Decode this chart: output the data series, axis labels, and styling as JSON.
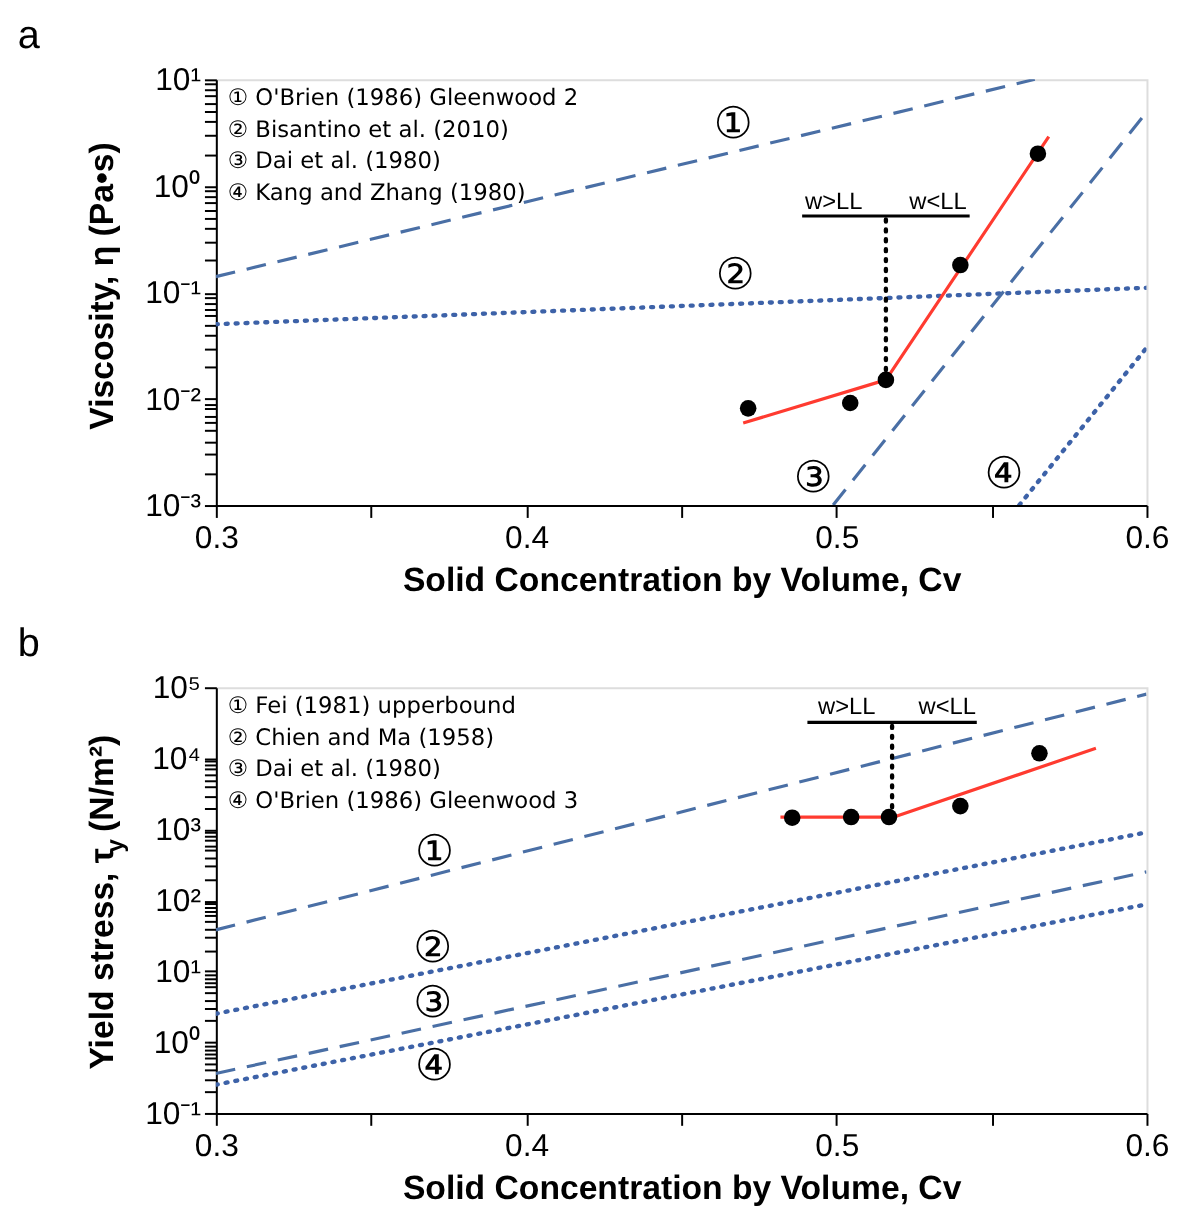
{
  "chart_data": [
    {
      "type": "line",
      "title": "a",
      "xlabel": "Solid Concentration by Volume, Cv",
      "ylabel": "Viscosity, η (Pa•s)",
      "log": "y",
      "grid": false,
      "xlim": [
        0.3,
        0.6
      ],
      "xticks": [
        0.3,
        {
          "value": 0.35,
          "label": null
        },
        0.4,
        {
          "value": 0.45,
          "label": null
        },
        0.5,
        {
          "value": 0.55,
          "label": null
        },
        0.6
      ],
      "ylim": [
        0.001,
        10
      ],
      "yticks": [
        {
          "value": 0.001,
          "label": "10⁻³"
        },
        {
          "value": 0.002,
          "label": null
        },
        {
          "value": 0.003,
          "label": null
        },
        {
          "value": 0.004,
          "label": null
        },
        {
          "value": 0.005,
          "label": null
        },
        {
          "value": 0.006,
          "label": null
        },
        {
          "value": 0.007,
          "label": null
        },
        {
          "value": 0.008,
          "label": null
        },
        {
          "value": 0.009,
          "label": null
        },
        {
          "value": 0.01,
          "label": "10⁻²"
        },
        {
          "value": 0.02,
          "label": null
        },
        {
          "value": 0.03,
          "label": null
        },
        {
          "value": 0.04,
          "label": null
        },
        {
          "value": 0.05,
          "label": null
        },
        {
          "value": 0.06,
          "label": null
        },
        {
          "value": 0.07,
          "label": null
        },
        {
          "value": 0.08,
          "label": null
        },
        {
          "value": 0.09,
          "label": null
        },
        {
          "value": 0.1,
          "label": "10⁻¹"
        },
        {
          "value": 0.2,
          "label": null
        },
        {
          "value": 0.3,
          "label": null
        },
        {
          "value": 0.4,
          "label": null
        },
        {
          "value": 0.5,
          "label": null
        },
        {
          "value": 0.6,
          "label": null
        },
        {
          "value": 0.7,
          "label": null
        },
        {
          "value": 0.8,
          "label": null
        },
        {
          "value": 0.9,
          "label": null
        },
        {
          "value": 1,
          "label": "10⁰"
        },
        {
          "value": 2,
          "label": null
        },
        {
          "value": 3,
          "label": null
        },
        {
          "value": 4,
          "label": null
        },
        {
          "value": 5,
          "label": null
        },
        {
          "value": 6,
          "label": null
        },
        {
          "value": 7,
          "label": null
        },
        {
          "value": 8,
          "label": null
        },
        {
          "value": 9,
          "label": null
        },
        {
          "value": 10,
          "label": "10¹"
        }
      ],
      "series": [
        {
          "line_style": "dashed",
          "marker": "none",
          "color": "#4a6fa5",
          "x": [
            0.3,
            0.564
          ],
          "values": [
            0.14,
            10
          ]
        },
        {
          "line_style": "dotted",
          "marker": "none",
          "color": "#3d62a8",
          "x": [
            0.3,
            0.6
          ],
          "values": [
            0.05,
            0.11
          ]
        },
        {
          "line_style": "dashed",
          "marker": "none",
          "color": "#4a6fa5",
          "x": [
            0.499,
            0.6
          ],
          "values": [
            0.001,
            4.9
          ]
        },
        {
          "line_style": "dotted",
          "marker": "none",
          "color": "#3d62a8",
          "x": [
            0.559,
            0.6
          ],
          "values": [
            0.001,
            0.03
          ]
        },
        {
          "line_style": "solid",
          "marker": "none",
          "color": "#ff3b30",
          "x": [
            0.47,
            0.516,
            0.5685
          ],
          "values": [
            0.0059,
            0.015,
            2.9
          ]
        },
        {
          "type": "scatter",
          "marker": "circle",
          "color": "#000000",
          "x": [
            0.4716,
            0.5045,
            0.516,
            0.54,
            0.565
          ],
          "values": [
            0.0081,
            0.0091,
            0.015,
            0.18,
            2.0
          ]
        },
        {
          "line_style": "dotted",
          "marker": "none",
          "color": "#000000",
          "x": [
            0.516,
            0.516
          ],
          "values": [
            0.015,
            0.52
          ]
        },
        {
          "line_style": "solid",
          "marker": "none",
          "color": "#000000",
          "x": [
            0.489,
            0.543
          ],
          "values": [
            0.52,
            0.52
          ]
        }
      ],
      "annotations": [
        "① O'Brien (1986) Gleenwood 2",
        "② Bisantino et al. (2010)",
        "③ Dai et al. (1980)",
        "④ Kang and Zhang (1980)",
        "①",
        "②",
        "③",
        "④",
        "w>LL",
        "w<LL"
      ]
    },
    {
      "type": "line",
      "title": "b",
      "xlabel": "Solid Concentration by Volume, Cv",
      "ylabel": "Yield stress, τ$_{y}$ (N/m²)",
      "log": "y",
      "grid": false,
      "xlim": [
        0.3,
        0.6
      ],
      "xticks": [
        0.3,
        {
          "value": 0.35,
          "label": null
        },
        0.4,
        {
          "value": 0.45,
          "label": null
        },
        0.5,
        {
          "value": 0.55,
          "label": null
        },
        0.6
      ],
      "ylim": [
        0.1,
        100000
      ],
      "yticks": [
        {
          "value": 0.1,
          "label": "10⁻¹"
        },
        {
          "value": 0.2,
          "label": null
        },
        {
          "value": 0.3,
          "label": null
        },
        {
          "value": 0.4,
          "label": null
        },
        {
          "value": 0.5,
          "label": null
        },
        {
          "value": 0.6,
          "label": null
        },
        {
          "value": 0.7,
          "label": null
        },
        {
          "value": 0.8,
          "label": null
        },
        {
          "value": 0.9,
          "label": null
        },
        {
          "value": 1,
          "label": "10⁰"
        },
        {
          "value": 2,
          "label": null
        },
        {
          "value": 3,
          "label": null
        },
        {
          "value": 4,
          "label": null
        },
        {
          "value": 5,
          "label": null
        },
        {
          "value": 6,
          "label": null
        },
        {
          "value": 7,
          "label": null
        },
        {
          "value": 8,
          "label": null
        },
        {
          "value": 9,
          "label": null
        },
        {
          "value": 10,
          "label": "10¹"
        },
        {
          "value": 20,
          "label": null
        },
        {
          "value": 30,
          "label": null
        },
        {
          "value": 40,
          "label": null
        },
        {
          "value": 50,
          "label": null
        },
        {
          "value": 60,
          "label": null
        },
        {
          "value": 70,
          "label": null
        },
        {
          "value": 80,
          "label": null
        },
        {
          "value": 90,
          "label": null
        },
        {
          "value": 100,
          "label": "10²"
        },
        {
          "value": 200,
          "label": null
        },
        {
          "value": 300,
          "label": null
        },
        {
          "value": 400,
          "label": null
        },
        {
          "value": 500,
          "label": null
        },
        {
          "value": 600,
          "label": null
        },
        {
          "value": 700,
          "label": null
        },
        {
          "value": 800,
          "label": null
        },
        {
          "value": 900,
          "label": null
        },
        {
          "value": 1000,
          "label": "10³"
        },
        {
          "value": 2000,
          "label": null
        },
        {
          "value": 3000,
          "label": null
        },
        {
          "value": 4000,
          "label": null
        },
        {
          "value": 5000,
          "label": null
        },
        {
          "value": 6000,
          "label": null
        },
        {
          "value": 7000,
          "label": null
        },
        {
          "value": 8000,
          "label": null
        },
        {
          "value": 9000,
          "label": null
        },
        {
          "value": 10000,
          "label": "10⁴"
        },
        {
          "value": 100000,
          "label": "10⁵"
        }
      ],
      "series": [
        {
          "line_style": "dashed",
          "marker": "none",
          "color": "#4a6fa5",
          "x": [
            0.3,
            0.6
          ],
          "values": [
            38,
            80000
          ]
        },
        {
          "line_style": "dotted",
          "marker": "none",
          "color": "#3d62a8",
          "x": [
            0.3,
            0.6
          ],
          "values": [
            2.5,
            900
          ]
        },
        {
          "line_style": "dashed",
          "marker": "none",
          "color": "#4a6fa5",
          "x": [
            0.3,
            0.6
          ],
          "values": [
            0.36,
            250
          ]
        },
        {
          "line_style": "dotted",
          "marker": "none",
          "color": "#3d62a8",
          "x": [
            0.3,
            0.6
          ],
          "values": [
            0.25,
            87
          ]
        },
        {
          "line_style": "solid",
          "marker": "none",
          "color": "#ff3b30",
          "x": [
            0.482,
            0.5186,
            0.5837
          ],
          "values": [
            1480,
            1480,
            13800
          ]
        },
        {
          "type": "scatter",
          "marker": "circle",
          "color": "#000000",
          "x": [
            0.4858,
            0.5048,
            0.517,
            0.54,
            0.5655
          ],
          "values": [
            1450,
            1480,
            1480,
            2110,
            11700
          ]
        },
        {
          "line_style": "dotted",
          "marker": "none",
          "color": "#000000",
          "x": [
            0.518,
            0.518
          ],
          "values": [
            1480,
            32000
          ]
        },
        {
          "line_style": "solid",
          "marker": "none",
          "color": "#000000",
          "x": [
            0.4907,
            0.5453
          ],
          "values": [
            32000,
            32000
          ]
        }
      ],
      "annotations": [
        "① Fei (1981) upperbound",
        "② Chien and Ma (1958)",
        "③ Dai et al. (1980)",
        "④ O'Brien (1986) Gleenwood 3",
        "①",
        "②",
        "③",
        "④",
        "w>LL",
        "w<LL"
      ]
    }
  ]
}
